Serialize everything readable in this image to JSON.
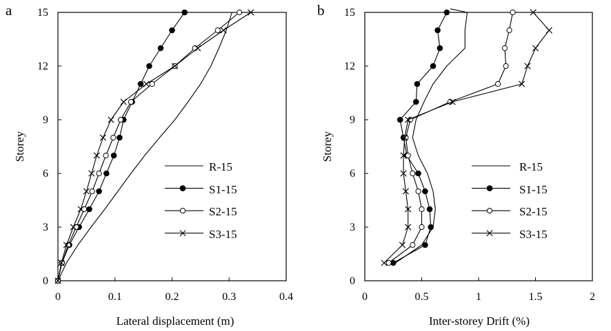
{
  "figure": {
    "panels": [
      {
        "letter": "a"
      },
      {
        "letter": "b"
      }
    ]
  },
  "chart_data": [
    {
      "type": "line",
      "panel_label": "a",
      "xlabel": "Lateral displacement (m)",
      "ylabel": "Storey",
      "xlim": [
        0,
        0.4
      ],
      "ylim": [
        0,
        15
      ],
      "xticks": [
        "0",
        "0.1",
        "0.2",
        "0.3",
        "0.4"
      ],
      "yticks": [
        "0",
        "3",
        "6",
        "9",
        "12",
        "15"
      ],
      "grid": false,
      "legend_position": "bottom-right",
      "series": [
        {
          "name": "R-15",
          "marker": "none",
          "x": [
            0,
            0.015,
            0.035,
            0.058,
            0.082,
            0.105,
            0.128,
            0.152,
            0.178,
            0.205,
            0.228,
            0.25,
            0.268,
            0.282,
            0.295,
            0.305
          ],
          "y": [
            0,
            1,
            2,
            3,
            4,
            5,
            6,
            7,
            8,
            9,
            10,
            11,
            12,
            13,
            14,
            15
          ]
        },
        {
          "name": "S1-15",
          "marker": "filled-circle",
          "x": [
            0,
            0.007,
            0.02,
            0.037,
            0.055,
            0.072,
            0.085,
            0.098,
            0.108,
            0.115,
            0.13,
            0.145,
            0.16,
            0.18,
            0.2,
            0.222
          ],
          "y": [
            0,
            1,
            2,
            3,
            4,
            5,
            6,
            7,
            8,
            9,
            10,
            11,
            12,
            13,
            14,
            15
          ]
        },
        {
          "name": "S2-15",
          "marker": "open-circle",
          "x": [
            0,
            0.007,
            0.018,
            0.032,
            0.046,
            0.06,
            0.072,
            0.084,
            0.097,
            0.11,
            0.128,
            0.165,
            0.205,
            0.24,
            0.28,
            0.318
          ],
          "y": [
            0,
            1,
            2,
            3,
            4,
            5,
            6,
            7,
            8,
            9,
            10,
            11,
            12,
            13,
            14,
            15
          ]
        },
        {
          "name": "S3-15",
          "marker": "cross",
          "x": [
            0,
            0.006,
            0.015,
            0.027,
            0.04,
            0.05,
            0.059,
            0.068,
            0.079,
            0.093,
            0.115,
            0.155,
            0.205,
            0.245,
            0.29,
            0.338
          ],
          "y": [
            0,
            1,
            2,
            3,
            4,
            5,
            6,
            7,
            8,
            9,
            10,
            11,
            12,
            13,
            14,
            15
          ]
        }
      ]
    },
    {
      "type": "line",
      "panel_label": "b",
      "xlabel": "Inter-storey Drift (%)",
      "ylabel": "Storey",
      "xlim": [
        0,
        2
      ],
      "ylim": [
        0,
        15
      ],
      "xticks": [
        "0",
        "0.5",
        "1",
        "1.5",
        "2"
      ],
      "yticks": [
        "0",
        "3",
        "6",
        "9",
        "12",
        "15"
      ],
      "grid": false,
      "legend_position": "bottom-right",
      "series": [
        {
          "name": "R-15",
          "marker": "none",
          "x": [
            0.27,
            0.5,
            0.6,
            0.62,
            0.6,
            0.55,
            0.47,
            0.42,
            0.45,
            0.52,
            0.6,
            0.72,
            0.88,
            0.88,
            0.9,
            0.75
          ],
          "y": [
            1,
            2,
            3,
            4,
            5,
            6,
            7,
            8,
            9,
            10,
            11,
            12,
            13,
            14,
            15,
            15.2
          ]
        },
        {
          "name": "S1-15",
          "marker": "filled-circle",
          "x": [
            0.25,
            0.53,
            0.58,
            0.57,
            0.53,
            0.47,
            0.37,
            0.34,
            0.31,
            0.45,
            0.46,
            0.6,
            0.66,
            0.64,
            0.72
          ],
          "y": [
            1,
            2,
            3,
            4,
            5,
            6,
            7,
            8,
            9,
            10,
            11,
            12,
            13,
            14,
            15
          ]
        },
        {
          "name": "S2-15",
          "marker": "open-circle",
          "x": [
            0.21,
            0.42,
            0.5,
            0.5,
            0.47,
            0.42,
            0.38,
            0.36,
            0.4,
            0.75,
            1.17,
            1.24,
            1.23,
            1.27,
            1.3
          ],
          "y": [
            1,
            2,
            3,
            4,
            5,
            6,
            7,
            8,
            9,
            10,
            11,
            12,
            13,
            14,
            15
          ]
        },
        {
          "name": "S3-15",
          "marker": "cross",
          "x": [
            0.17,
            0.33,
            0.38,
            0.38,
            0.36,
            0.34,
            0.34,
            0.35,
            0.38,
            0.77,
            1.38,
            1.43,
            1.5,
            1.62,
            1.48
          ],
          "y": [
            1,
            2,
            3,
            4,
            5,
            6,
            7,
            8,
            9,
            10,
            11,
            12,
            13,
            14,
            15
          ]
        }
      ]
    }
  ]
}
